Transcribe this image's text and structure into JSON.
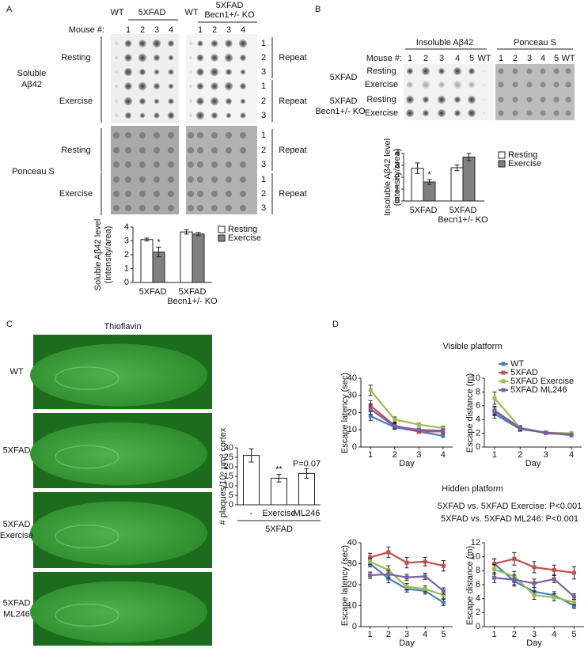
{
  "panel_a": {
    "label": "A",
    "header_wt": "WT",
    "header_5xfad": "5XFAD",
    "header_wt2": "WT",
    "header_ko_line1": "5XFAD",
    "header_ko_line2": "Becn1+/- KO",
    "mouse_label": "Mouse #:",
    "lanes_left": [
      "1",
      "2",
      "3",
      "4"
    ],
    "lanes_right": [
      "1",
      "2",
      "3",
      "4"
    ],
    "row_numbers": [
      [
        "1",
        "2",
        "3"
      ],
      [
        "1",
        "2",
        "3"
      ],
      [
        "1",
        "2",
        "3"
      ],
      [
        "1",
        "2",
        "3"
      ]
    ],
    "repeat": [
      "Repeat",
      "Repeat",
      "Repeat",
      "Repeat"
    ],
    "soluble_label": [
      "Soluble",
      "Aβ42"
    ],
    "conditions": [
      "Resting",
      "Exercise",
      "Resting",
      "Exercise"
    ],
    "ponceau": "Ponceau S"
  },
  "panel_b": {
    "label": "B",
    "insoluble": "Insoluble Aβ42",
    "ponceau": "Ponceau S",
    "mouse_label": "Mouse #:",
    "lanes_left": [
      "1",
      "2",
      "3",
      "4",
      "5",
      "WT"
    ],
    "lanes_right": [
      "1",
      "2",
      "3",
      "4",
      "5",
      "WT"
    ],
    "groups": [
      {
        "name": [
          "5XFAD"
        ],
        "conditions": [
          "Resting",
          "Exercise"
        ]
      },
      {
        "name": [
          "5XFAD",
          "Becn1+/- KO"
        ],
        "conditions": [
          "Resting",
          "Exercise"
        ]
      }
    ]
  },
  "panel_c": {
    "label": "C",
    "title": "Thioflavin",
    "images": [
      [
        "WT"
      ],
      [
        "5XFAD"
      ],
      [
        "5XFAD",
        "Exercise"
      ],
      [
        "5XFAD",
        "ML246"
      ]
    ]
  },
  "panel_d": {
    "label": "D",
    "visible": "Visible platform",
    "hidden": "Hidden platform",
    "stats": [
      "5XFAD vs. 5XFAD Exercise: P<0.001",
      "5XFAD vs. 5XFAD ML246: P<0.001"
    ]
  },
  "chart_data": [
    {
      "type": "bar",
      "ylabel": [
        "Soluble Aβ42 level",
        "(intensity/area)"
      ],
      "categories": [
        [
          "5XFAD"
        ],
        [
          "5XFAD",
          "Becn1+/- KO"
        ]
      ],
      "series": [
        {
          "name": "Resting",
          "color": "#ffffff",
          "values": [
            3.1,
            3.65
          ],
          "errors": [
            0.1,
            0.15
          ]
        },
        {
          "name": "Exercise",
          "color": "#808080",
          "values": [
            2.2,
            3.5
          ],
          "errors": [
            0.35,
            0.12
          ],
          "annotations": [
            "*",
            null
          ]
        }
      ],
      "ylim": [
        0,
        4
      ],
      "yticks": [
        0,
        1,
        2,
        3,
        4
      ]
    },
    {
      "type": "bar",
      "ylabel": [
        "Insoluble Aβ42 level",
        "(intensity/area)"
      ],
      "categories": [
        [
          "5XFAD"
        ],
        [
          "5XFAD",
          "Becn1+/- KO"
        ]
      ],
      "series": [
        {
          "name": "Resting",
          "color": "#ffffff",
          "values": [
            2.75,
            2.8
          ],
          "errors": [
            0.45,
            0.25
          ]
        },
        {
          "name": "Exercise",
          "color": "#808080",
          "values": [
            1.6,
            3.7
          ],
          "errors": [
            0.2,
            0.3
          ],
          "annotations": [
            "*",
            null
          ]
        }
      ],
      "ylim": [
        0,
        4
      ],
      "yticks": [
        0,
        1,
        2,
        3,
        4
      ]
    },
    {
      "type": "bar",
      "ylabel": "# plaques/10⁶ µm² cortex",
      "categories": [
        "-",
        "Exercise",
        "ML246"
      ],
      "group": "5XFAD",
      "values": [
        26,
        14,
        16.5
      ],
      "errors": [
        3.5,
        2,
        2.5
      ],
      "color": "#ffffff",
      "annotations": [
        null,
        "**",
        "P=0.07"
      ],
      "ylim": [
        0,
        30
      ],
      "yticks": [
        0,
        5,
        10,
        15,
        20,
        25,
        30
      ]
    },
    {
      "type": "line",
      "ylabel": "Escape latency (sec)",
      "xlabel": "Day",
      "x": [
        1,
        2,
        3,
        4
      ],
      "xlim": [
        0.6,
        4.4
      ],
      "xticks": [
        1,
        2,
        3,
        4
      ],
      "ylim": [
        0,
        40
      ],
      "yticks": [
        0,
        10,
        20,
        30,
        40
      ],
      "series": [
        {
          "name": "WT",
          "color": "#4a7ebb",
          "values": [
            18,
            11.5,
            9,
            6.5
          ],
          "errors": [
            2.5,
            1.2,
            1,
            0.8
          ]
        },
        {
          "name": "5XFAD",
          "color": "#c0504d",
          "values": [
            24,
            12.5,
            9,
            9
          ],
          "errors": [
            3,
            1.5,
            1,
            1.2
          ]
        },
        {
          "name": "5XFAD Exercise",
          "color": "#9bbb59",
          "values": [
            33,
            16,
            13,
            11
          ],
          "errors": [
            3,
            1.5,
            1,
            1.2
          ]
        },
        {
          "name": "5XFAD ML246",
          "color": "#7a5ea8",
          "values": [
            22,
            12,
            10,
            9.5
          ],
          "errors": [
            3,
            1.5,
            1,
            1
          ]
        }
      ],
      "legend": "upper right"
    },
    {
      "type": "line",
      "ylabel": "Escape distance (m)",
      "xlabel": "Day",
      "x": [
        1,
        2,
        3,
        4
      ],
      "xlim": [
        0.6,
        4.4
      ],
      "xticks": [
        1,
        2,
        3,
        4
      ],
      "ylim": [
        0,
        10
      ],
      "yticks": [
        0,
        2,
        4,
        6,
        8,
        10
      ],
      "series": [
        {
          "color": "#4a7ebb",
          "values": [
            4.8,
            2.6,
            2.1,
            1.7
          ],
          "errors": [
            0.6,
            0.3,
            0.2,
            0.2
          ]
        },
        {
          "color": "#c0504d",
          "values": [
            5.3,
            2.8,
            2.0,
            1.8
          ],
          "errors": [
            0.6,
            0.3,
            0.2,
            0.2
          ]
        },
        {
          "color": "#9bbb59",
          "values": [
            7.1,
            2.8,
            2.1,
            2.0
          ],
          "errors": [
            0.9,
            0.3,
            0.2,
            0.2
          ]
        },
        {
          "color": "#7a5ea8",
          "values": [
            5.2,
            2.7,
            2.1,
            1.8
          ],
          "errors": [
            0.6,
            0.3,
            0.2,
            0.2
          ]
        }
      ]
    },
    {
      "type": "line",
      "ylabel": "Escape latency (sec)",
      "xlabel": "Day",
      "x": [
        1,
        2,
        3,
        4,
        5
      ],
      "xlim": [
        0.5,
        5.5
      ],
      "xticks": [
        1,
        2,
        3,
        4,
        5
      ],
      "ylim": [
        0,
        40
      ],
      "yticks": [
        0,
        10,
        20,
        30,
        40
      ],
      "series": [
        {
          "color": "#4a7ebb",
          "values": [
            30,
            23,
            18,
            17,
            11.5
          ],
          "errors": [
            1.5,
            2,
            1.5,
            1.5,
            1.5
          ]
        },
        {
          "color": "#c0504d",
          "values": [
            33,
            35.5,
            30.5,
            31,
            29
          ],
          "errors": [
            2,
            2.5,
            2.5,
            2,
            2.5
          ]
        },
        {
          "color": "#9bbb59",
          "values": [
            31,
            27,
            19,
            18,
            15
          ],
          "errors": [
            1.5,
            2,
            1.5,
            1.5,
            1.5
          ]
        },
        {
          "color": "#7a5ea8",
          "values": [
            24.5,
            25,
            23.5,
            24,
            17
          ],
          "errors": [
            1.5,
            2,
            1.5,
            1.5,
            1.5
          ]
        }
      ]
    },
    {
      "type": "line",
      "ylabel": "Escape distance (m)",
      "xlabel": "Day",
      "x": [
        1,
        2,
        3,
        4,
        5
      ],
      "xlim": [
        0.5,
        5.5
      ],
      "xticks": [
        1,
        2,
        3,
        4,
        5
      ],
      "ylim": [
        0,
        12
      ],
      "yticks": [
        0,
        2,
        4,
        6,
        8,
        10,
        12
      ],
      "series": [
        {
          "color": "#4a7ebb",
          "values": [
            9,
            6.5,
            5,
            4.5,
            3
          ],
          "errors": [
            0.7,
            0.7,
            0.6,
            0.5,
            0.4
          ]
        },
        {
          "color": "#c0504d",
          "values": [
            9,
            9.7,
            8.5,
            8.1,
            7.7
          ],
          "errors": [
            0.7,
            0.9,
            0.8,
            0.7,
            0.9
          ]
        },
        {
          "color": "#9bbb59",
          "values": [
            8.2,
            7.2,
            4.5,
            4.2,
            3.5
          ],
          "errors": [
            0.7,
            0.7,
            0.6,
            0.5,
            0.4
          ]
        },
        {
          "color": "#7a5ea8",
          "values": [
            7,
            6.7,
            6.2,
            6.8,
            4.3
          ],
          "errors": [
            0.7,
            0.7,
            0.6,
            0.5,
            0.4
          ]
        }
      ]
    }
  ]
}
